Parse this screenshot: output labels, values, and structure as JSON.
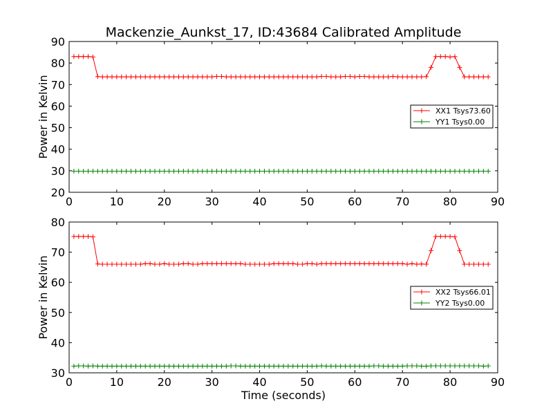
{
  "figure": {
    "title": "Mackenzie_Aunkst_17, ID:43684 Calibrated Amplitude",
    "xlabel": "Time (seconds)"
  },
  "chart_data": [
    {
      "type": "line",
      "ylabel": "Power in Kelvin",
      "xlim": [
        0,
        90
      ],
      "ylim": [
        20,
        90
      ],
      "xticks": [
        0,
        10,
        20,
        30,
        40,
        50,
        60,
        70,
        80,
        90
      ],
      "yticks": [
        20,
        30,
        40,
        50,
        60,
        70,
        80,
        90
      ],
      "grid": false,
      "legend_position": "right",
      "series": [
        {
          "name": "XX1 Tsys73.60",
          "color": "#ff0000",
          "marker": "+",
          "x": [
            1,
            2,
            3,
            4,
            5,
            6,
            7,
            8,
            9,
            10,
            11,
            12,
            13,
            14,
            15,
            16,
            17,
            18,
            19,
            20,
            21,
            22,
            23,
            24,
            25,
            26,
            27,
            28,
            29,
            30,
            31,
            32,
            33,
            34,
            35,
            36,
            37,
            38,
            39,
            40,
            41,
            42,
            43,
            44,
            45,
            46,
            47,
            48,
            49,
            50,
            51,
            52,
            53,
            54,
            55,
            56,
            57,
            58,
            59,
            60,
            61,
            62,
            63,
            64,
            65,
            66,
            67,
            68,
            69,
            70,
            71,
            72,
            73,
            74,
            75,
            76,
            77,
            78,
            79,
            80,
            81,
            82,
            83,
            84,
            85,
            86,
            87,
            88
          ],
          "y": [
            83,
            83,
            83,
            83,
            82.8,
            73.7,
            73.6,
            73.6,
            73.6,
            73.6,
            73.6,
            73.6,
            73.6,
            73.6,
            73.6,
            73.6,
            73.6,
            73.6,
            73.6,
            73.6,
            73.6,
            73.6,
            73.6,
            73.6,
            73.6,
            73.6,
            73.6,
            73.6,
            73.6,
            73.6,
            73.8,
            73.8,
            73.6,
            73.6,
            73.6,
            73.6,
            73.6,
            73.6,
            73.6,
            73.6,
            73.6,
            73.6,
            73.6,
            73.6,
            73.6,
            73.6,
            73.6,
            73.6,
            73.6,
            73.6,
            73.6,
            73.6,
            73.8,
            73.8,
            73.6,
            73.6,
            73.6,
            73.8,
            73.8,
            73.6,
            73.8,
            73.8,
            73.6,
            73.6,
            73.6,
            73.6,
            73.6,
            73.8,
            73.6,
            73.6,
            73.6,
            73.6,
            73.6,
            73.6,
            73.7,
            78,
            83,
            83,
            83,
            82.8,
            83,
            78,
            73.6,
            73.6,
            73.6,
            73.6,
            73.6,
            73.6
          ]
        },
        {
          "name": "YY1 Tsys0.00",
          "color": "#008000",
          "marker": "+",
          "x": [
            1,
            2,
            3,
            4,
            5,
            6,
            7,
            8,
            9,
            10,
            11,
            12,
            13,
            14,
            15,
            16,
            17,
            18,
            19,
            20,
            21,
            22,
            23,
            24,
            25,
            26,
            27,
            28,
            29,
            30,
            31,
            32,
            33,
            34,
            35,
            36,
            37,
            38,
            39,
            40,
            41,
            42,
            43,
            44,
            45,
            46,
            47,
            48,
            49,
            50,
            51,
            52,
            53,
            54,
            55,
            56,
            57,
            58,
            59,
            60,
            61,
            62,
            63,
            64,
            65,
            66,
            67,
            68,
            69,
            70,
            71,
            72,
            73,
            74,
            75,
            76,
            77,
            78,
            79,
            80,
            81,
            82,
            83,
            84,
            85,
            86,
            87,
            88
          ],
          "y": [
            29.8,
            29.8,
            29.8,
            29.8,
            29.8,
            29.8,
            29.8,
            29.8,
            29.8,
            29.8,
            29.8,
            29.8,
            29.8,
            29.8,
            29.8,
            29.8,
            29.8,
            29.8,
            29.8,
            29.8,
            29.8,
            29.8,
            29.8,
            29.8,
            29.8,
            29.8,
            29.8,
            29.8,
            29.8,
            29.8,
            29.8,
            29.8,
            29.8,
            29.8,
            29.8,
            29.8,
            29.8,
            29.8,
            29.8,
            29.8,
            29.8,
            29.8,
            29.8,
            29.8,
            29.8,
            29.8,
            29.8,
            29.8,
            29.8,
            29.8,
            29.8,
            29.8,
            29.8,
            29.8,
            29.8,
            29.8,
            29.8,
            29.8,
            29.8,
            29.8,
            29.8,
            29.8,
            29.8,
            29.8,
            29.8,
            29.8,
            29.8,
            29.8,
            29.8,
            29.8,
            29.8,
            29.8,
            29.8,
            29.8,
            29.8,
            29.8,
            29.8,
            29.8,
            29.8,
            29.8,
            29.8,
            29.8,
            29.8,
            29.8,
            29.8,
            29.8,
            29.8,
            29.8
          ]
        }
      ]
    },
    {
      "type": "line",
      "ylabel": "Power in Kelvin",
      "xlim": [
        0,
        90
      ],
      "ylim": [
        30,
        80
      ],
      "xticks": [
        0,
        10,
        20,
        30,
        40,
        50,
        60,
        70,
        80,
        90
      ],
      "yticks": [
        30,
        40,
        50,
        60,
        70,
        80
      ],
      "grid": false,
      "legend_position": "right",
      "series": [
        {
          "name": "XX2 Tsys66.01",
          "color": "#ff0000",
          "marker": "+",
          "x": [
            1,
            2,
            3,
            4,
            5,
            6,
            7,
            8,
            9,
            10,
            11,
            12,
            13,
            14,
            15,
            16,
            17,
            18,
            19,
            20,
            21,
            22,
            23,
            24,
            25,
            26,
            27,
            28,
            29,
            30,
            31,
            32,
            33,
            34,
            35,
            36,
            37,
            38,
            39,
            40,
            41,
            42,
            43,
            44,
            45,
            46,
            47,
            48,
            49,
            50,
            51,
            52,
            53,
            54,
            55,
            56,
            57,
            58,
            59,
            60,
            61,
            62,
            63,
            64,
            65,
            66,
            67,
            68,
            69,
            70,
            71,
            72,
            73,
            74,
            75,
            76,
            77,
            78,
            79,
            80,
            81,
            82,
            83,
            84,
            85,
            86,
            87,
            88
          ],
          "y": [
            75.2,
            75.2,
            75.2,
            75.2,
            75.1,
            66.1,
            66,
            66,
            66,
            66,
            66,
            66,
            66,
            66,
            66,
            66.2,
            66.2,
            66,
            66,
            66.2,
            66,
            66,
            66,
            66.2,
            66.2,
            66,
            66,
            66.2,
            66.2,
            66.2,
            66.2,
            66.2,
            66.2,
            66.2,
            66.2,
            66.2,
            66,
            66,
            66,
            66,
            66,
            66,
            66.2,
            66.2,
            66.2,
            66.2,
            66.2,
            66,
            66,
            66.2,
            66.2,
            66,
            66.2,
            66.2,
            66.2,
            66.2,
            66.2,
            66.2,
            66.2,
            66.2,
            66.2,
            66.2,
            66.2,
            66.2,
            66.2,
            66.2,
            66.2,
            66.2,
            66.2,
            66.2,
            66,
            66.2,
            66,
            66.1,
            66,
            70.5,
            75.2,
            75.2,
            75.2,
            75.2,
            75.1,
            70.5,
            66,
            66,
            66,
            66,
            66,
            66
          ]
        },
        {
          "name": "YY2 Tsys0.00",
          "color": "#008000",
          "marker": "+",
          "x": [
            1,
            2,
            3,
            4,
            5,
            6,
            7,
            8,
            9,
            10,
            11,
            12,
            13,
            14,
            15,
            16,
            17,
            18,
            19,
            20,
            21,
            22,
            23,
            24,
            25,
            26,
            27,
            28,
            29,
            30,
            31,
            32,
            33,
            34,
            35,
            36,
            37,
            38,
            39,
            40,
            41,
            42,
            43,
            44,
            45,
            46,
            47,
            48,
            49,
            50,
            51,
            52,
            53,
            54,
            55,
            56,
            57,
            58,
            59,
            60,
            61,
            62,
            63,
            64,
            65,
            66,
            67,
            68,
            69,
            70,
            71,
            72,
            73,
            74,
            75,
            76,
            77,
            78,
            79,
            80,
            81,
            82,
            83,
            84,
            85,
            86,
            87,
            88
          ],
          "y": [
            32.2,
            32.3,
            32.3,
            32.2,
            32.3,
            32.2,
            32.2,
            32.2,
            32.2,
            32.2,
            32.2,
            32.2,
            32.2,
            32.2,
            32.2,
            32.2,
            32.2,
            32.2,
            32.2,
            32.2,
            32.2,
            32.2,
            32.2,
            32.2,
            32.2,
            32.2,
            32.2,
            32.2,
            32.2,
            32.2,
            32.2,
            32.2,
            32.2,
            32.3,
            32.3,
            32.2,
            32.2,
            32.2,
            32.2,
            32.2,
            32.2,
            32.2,
            32.2,
            32.2,
            32.2,
            32.2,
            32.2,
            32.2,
            32.2,
            32.2,
            32.2,
            32.2,
            32.3,
            32.2,
            32.2,
            32.2,
            32.2,
            32.2,
            32.2,
            32.2,
            32.2,
            32.2,
            32.2,
            32.3,
            32.3,
            32.2,
            32.2,
            32.2,
            32.2,
            32.2,
            32.3,
            32.3,
            32.3,
            32.2,
            32.2,
            32.3,
            32.3,
            32.3,
            32.3,
            32.3,
            32.3,
            32.3,
            32.3,
            32.3,
            32.3,
            32.3,
            32.2,
            32.3
          ]
        }
      ]
    }
  ]
}
